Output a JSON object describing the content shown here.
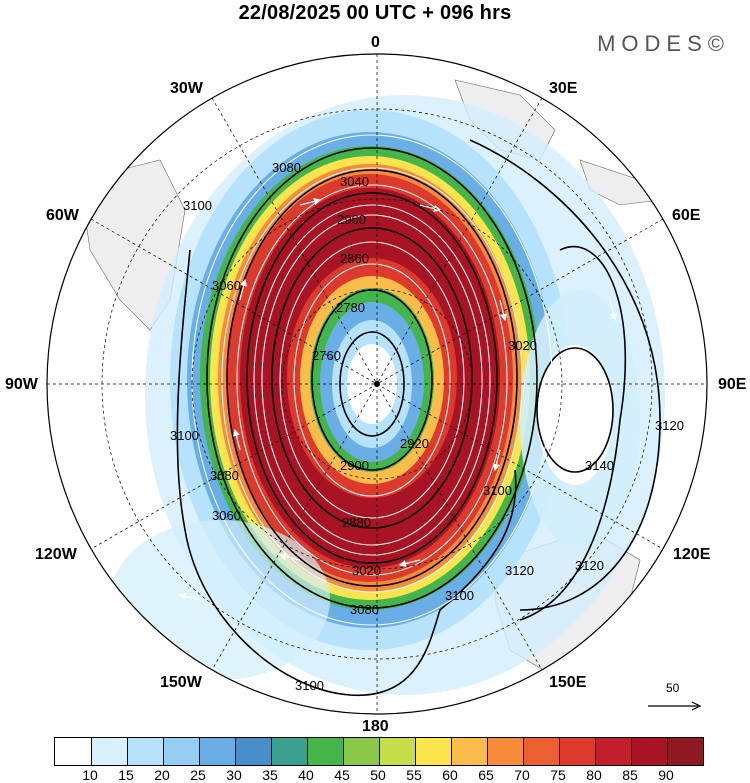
{
  "header": {
    "title": "22/08/2025  00 UTC  + 096 hrs",
    "brand": "MODES©"
  },
  "map": {
    "projection": "south-polar-stereographic",
    "pole_marker": "south-pole-dot",
    "longitude_labels": {
      "top": "0",
      "top_left": "30W",
      "top_right": "30E",
      "upper_left": "60W",
      "upper_right": "60E",
      "left": "90W",
      "right": "90E",
      "lower_left": "120W",
      "lower_right": "120E",
      "bottom_left": "150W",
      "bottom_right": "150E",
      "bottom": "180"
    },
    "contour_labels": [
      "2780",
      "2760",
      "2860",
      "2900",
      "2960",
      "3040",
      "3080",
      "3020",
      "3060",
      "3100",
      "3100",
      "3100",
      "3100",
      "3080",
      "3120",
      "3120",
      "3140",
      "3120",
      "3100",
      "3020",
      "2880",
      "3060",
      "3080",
      "2920"
    ],
    "wind_field": "streamlines",
    "wind_colors": {
      "calm": "#ffffff",
      "weak": "#d2eefc",
      "moderate": "#4a98d8",
      "strong": "#fed945",
      "jet": "#9f1119"
    },
    "land_color": "#eeeeee",
    "coast_color": "#555555",
    "contour_color": "#000000"
  },
  "scale": {
    "value": "50",
    "arrow_icon": "arrow-right-icon"
  },
  "colorbar": {
    "colors": [
      "#ffffff",
      "#d7f1fd",
      "#b6e3fb",
      "#95cdf4",
      "#6aaee6",
      "#4a8ec9",
      "#3aa08f",
      "#43b54b",
      "#8bc847",
      "#c7dd4b",
      "#fbe44e",
      "#fbbd4a",
      "#f68c3a",
      "#ec5f2e",
      "#dc3a2d",
      "#c11f2b",
      "#a81424",
      "#8d1a22"
    ],
    "labels": [
      "10",
      "15",
      "20",
      "25",
      "30",
      "35",
      "40",
      "45",
      "50",
      "55",
      "60",
      "65",
      "70",
      "75",
      "80",
      "85",
      "90"
    ]
  }
}
